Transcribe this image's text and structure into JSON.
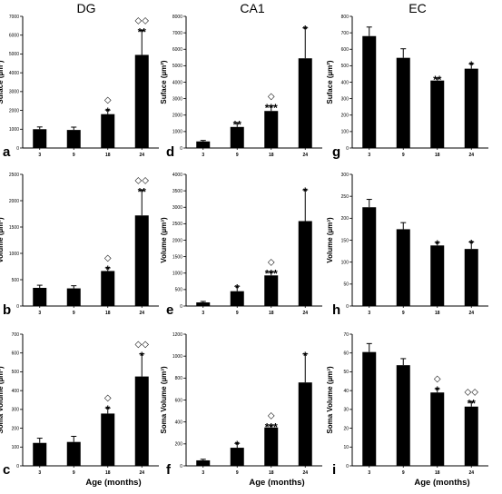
{
  "column_titles": [
    "DG",
    "CA1",
    "EC"
  ],
  "x_axis_title": "Age (months)",
  "chart_data": [
    {
      "panel": "a",
      "type": "bar",
      "categories": [
        "3",
        "9",
        "18",
        "24"
      ],
      "values": [
        1000,
        960,
        1800,
        4950
      ],
      "errors": [
        120,
        150,
        220,
        1300
      ],
      "ylabel": "Suface (µm²)",
      "ylim": [
        0,
        7000
      ],
      "yticks": [
        0,
        1000,
        2000,
        3000,
        4000,
        5000,
        6000,
        7000
      ],
      "annotations": [
        "",
        "",
        "*",
        "**"
      ],
      "diamonds": [
        "",
        "",
        "◇",
        "◇◇"
      ]
    },
    {
      "panel": "d",
      "type": "bar",
      "categories": [
        "3",
        "9",
        "18",
        "24"
      ],
      "values": [
        400,
        1280,
        2250,
        5450
      ],
      "errors": [
        60,
        250,
        300,
        1850
      ],
      "ylabel": "Suface (µm²)",
      "ylim": [
        0,
        8000
      ],
      "yticks": [
        0,
        1000,
        2000,
        3000,
        4000,
        5000,
        6000,
        7000,
        8000
      ],
      "annotations": [
        "",
        "**",
        "***",
        "*"
      ],
      "diamonds": [
        "",
        "",
        "◇",
        ""
      ]
    },
    {
      "panel": "g",
      "type": "bar",
      "categories": [
        "3",
        "9",
        "18",
        "24"
      ],
      "values": [
        680,
        548,
        410,
        482
      ],
      "errors": [
        55,
        55,
        15,
        30
      ],
      "ylabel": "Suface (µm²)",
      "ylim": [
        0,
        800
      ],
      "yticks": [
        0,
        100,
        200,
        300,
        400,
        500,
        600,
        700,
        800
      ],
      "annotations": [
        "",
        "",
        "**",
        "*"
      ],
      "diamonds": [
        "",
        "",
        "",
        ""
      ]
    },
    {
      "panel": "b",
      "type": "bar",
      "categories": [
        "3",
        "9",
        "18",
        "24"
      ],
      "values": [
        345,
        335,
        665,
        1720
      ],
      "errors": [
        50,
        50,
        60,
        480
      ],
      "ylabel": "Volume (µm³)",
      "ylim": [
        0,
        2500
      ],
      "yticks": [
        0,
        500,
        1000,
        1500,
        2000,
        2500
      ],
      "annotations": [
        "",
        "",
        "*",
        "**"
      ],
      "diamonds": [
        "",
        "",
        "◇",
        "◇◇"
      ]
    },
    {
      "panel": "e",
      "type": "bar",
      "categories": [
        "3",
        "9",
        "18",
        "24"
      ],
      "values": [
        110,
        450,
        930,
        2580
      ],
      "errors": [
        30,
        150,
        100,
        950
      ],
      "ylabel": "Volume (µm³)",
      "ylim": [
        0,
        4000
      ],
      "yticks": [
        0,
        500,
        1000,
        1500,
        2000,
        2500,
        3000,
        3500,
        4000
      ],
      "annotations": [
        "",
        "*",
        "***",
        "*"
      ],
      "diamonds": [
        "",
        "",
        "◇",
        ""
      ]
    },
    {
      "panel": "h",
      "type": "bar",
      "categories": [
        "3",
        "9",
        "18",
        "24"
      ],
      "values": [
        225,
        175,
        138,
        130
      ],
      "errors": [
        18,
        15,
        7,
        16
      ],
      "ylabel": "Volume (µm³)",
      "ylim": [
        0,
        300
      ],
      "yticks": [
        0,
        50,
        100,
        150,
        200,
        250,
        300
      ],
      "annotations": [
        "",
        "",
        "*",
        "*"
      ],
      "diamonds": [
        "",
        "",
        "",
        ""
      ]
    },
    {
      "panel": "c",
      "type": "bar",
      "categories": [
        "3",
        "9",
        "18",
        "24"
      ],
      "values": [
        122,
        127,
        278,
        475
      ],
      "errors": [
        25,
        30,
        30,
        120
      ],
      "ylabel": "Soma Volume (µm³)",
      "ylim": [
        0,
        700
      ],
      "yticks": [
        0,
        100,
        200,
        300,
        400,
        500,
        600,
        700
      ],
      "annotations": [
        "",
        "",
        "*",
        "*"
      ],
      "diamonds": [
        "",
        "",
        "◇",
        "◇◇"
      ]
    },
    {
      "panel": "f",
      "type": "bar",
      "categories": [
        "3",
        "9",
        "18",
        "24"
      ],
      "values": [
        50,
        165,
        350,
        760
      ],
      "errors": [
        10,
        40,
        20,
        260
      ],
      "ylabel": "Soma Volume (µm³)",
      "ylim": [
        0,
        1200
      ],
      "yticks": [
        0,
        200,
        400,
        600,
        800,
        1000,
        1200
      ],
      "annotations": [
        "",
        "*",
        "***",
        "*"
      ],
      "diamonds": [
        "",
        "",
        "◇",
        ""
      ]
    },
    {
      "panel": "i",
      "type": "bar",
      "categories": [
        "3",
        "9",
        "18",
        "24"
      ],
      "values": [
        60.5,
        53.5,
        39,
        31.5
      ],
      "errors": [
        4.5,
        3.5,
        2,
        2.5
      ],
      "ylabel": "Soma Volume (µm³)",
      "ylim": [
        0,
        70
      ],
      "yticks": [
        0,
        10,
        20,
        30,
        40,
        50,
        60,
        70
      ],
      "annotations": [
        "",
        "",
        "*",
        "**"
      ],
      "diamonds": [
        "",
        "",
        "◇",
        "◇◇"
      ]
    }
  ]
}
